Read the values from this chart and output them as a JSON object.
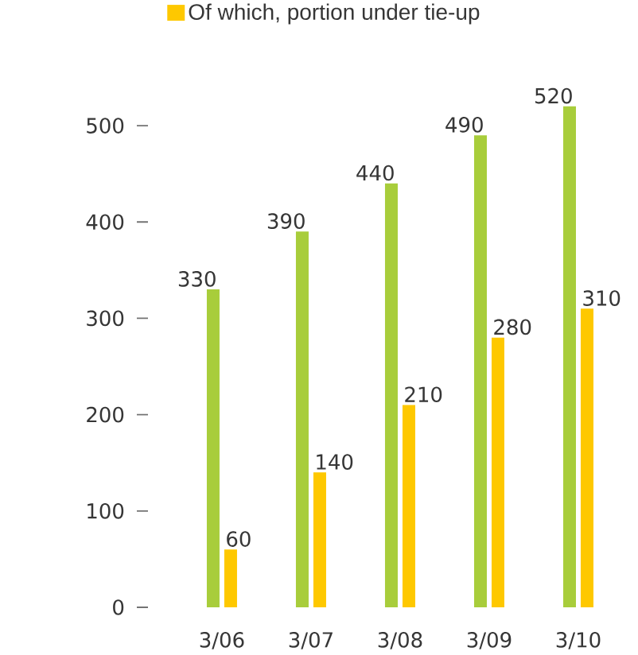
{
  "chart_data": {
    "type": "bar",
    "categories": [
      "3/06",
      "3/07",
      "3/08",
      "3/09",
      "3/10"
    ],
    "series": [
      {
        "color": "#a8cd3b",
        "values": [
          330,
          390,
          440,
          490,
          520
        ]
      },
      {
        "name": "Of which, portion under tie-up",
        "color": "#fec800",
        "values": [
          60,
          140,
          210,
          280,
          310
        ]
      }
    ],
    "ylim": [
      0,
      520
    ],
    "yticks": [
      0,
      100,
      200,
      300,
      400,
      500
    ],
    "data_labels": true,
    "legend": "top"
  }
}
